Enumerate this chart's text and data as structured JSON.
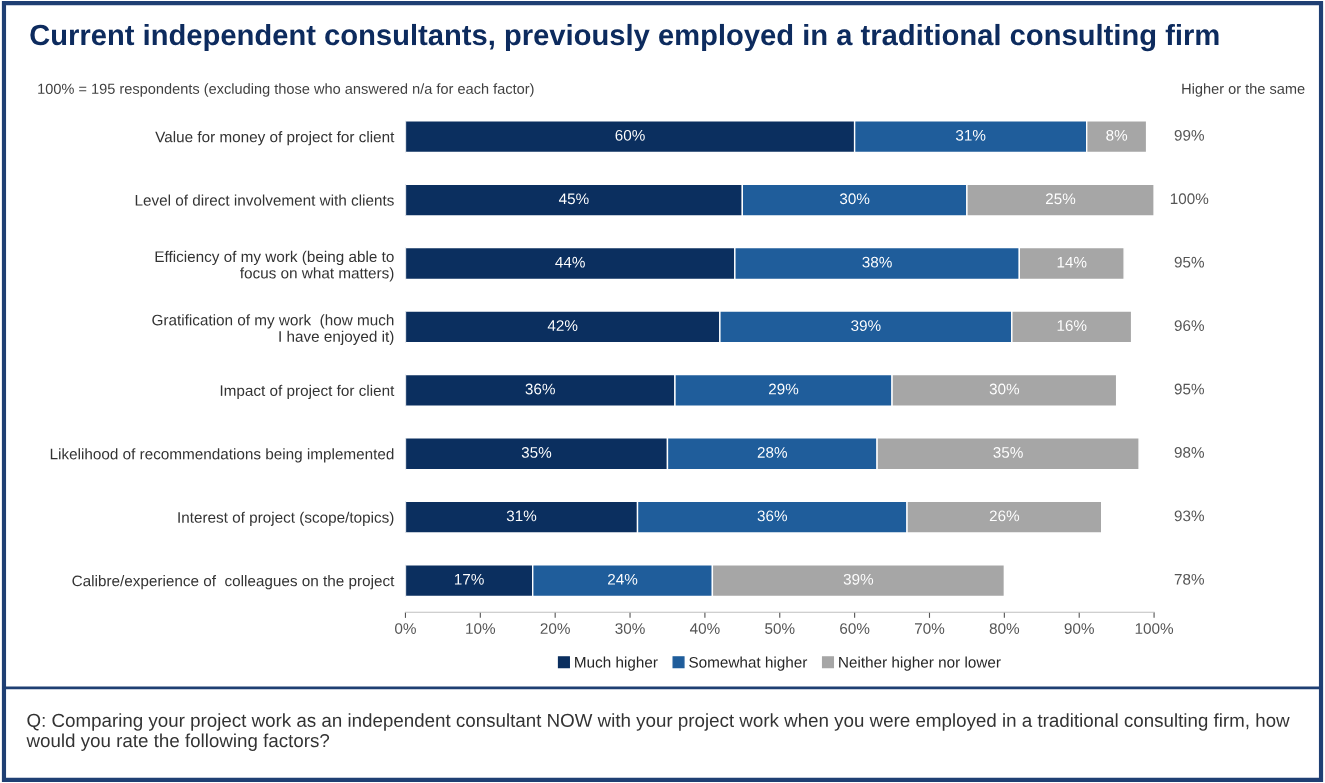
{
  "chart_data": {
    "type": "bar",
    "orientation": "horizontal",
    "stacked": true,
    "title": "Current independent consultants, previously employed in a traditional consulting firm",
    "subtitle": "100% = 195 respondents (excluding those who answered n/a for each factor)",
    "categories": [
      "Value for money of project for client",
      "Level of direct involvement with clients",
      "Efficiency of my work (being able to\nfocus on what matters)",
      "Gratification of my work  (how much\nI have enjoyed it)",
      "Impact of project for client",
      "Likelihood of recommendations being implemented",
      "Interest of project (scope/topics)",
      "Calibre/experience of  colleagues on the project"
    ],
    "series": [
      {
        "name": "Much higher",
        "color": "#0b2f5f",
        "values": [
          60,
          45,
          44,
          42,
          36,
          35,
          31,
          17
        ],
        "value_labels": [
          "60%",
          "45%",
          "44%",
          "42%",
          "36%",
          "35%",
          "31%",
          "17%"
        ]
      },
      {
        "name": "Somewhat higher",
        "color": "#1f5d9b",
        "values": [
          31,
          30,
          38,
          39,
          29,
          28,
          36,
          24
        ],
        "value_labels": [
          "31%",
          "30%",
          "38%",
          "39%",
          "29%",
          "28%",
          "36%",
          "24%"
        ]
      },
      {
        "name": "Neither higher nor lower",
        "color": "#a6a6a6",
        "values": [
          8,
          25,
          14,
          16,
          30,
          35,
          26,
          39
        ],
        "value_labels": [
          "8%",
          "25%",
          "14%",
          "16%",
          "30%",
          "35%",
          "26%",
          "39%"
        ]
      }
    ],
    "xlim": [
      0,
      100
    ],
    "xticks": [
      {
        "value": 0,
        "label": "0%"
      },
      {
        "value": 10,
        "label": "10%"
      },
      {
        "value": 20,
        "label": "20%"
      },
      {
        "value": 30,
        "label": "30%"
      },
      {
        "value": 40,
        "label": "40%"
      },
      {
        "value": 50,
        "label": "50%"
      },
      {
        "value": 60,
        "label": "60%"
      },
      {
        "value": 70,
        "label": "70%"
      },
      {
        "value": 80,
        "label": "80%"
      },
      {
        "value": 90,
        "label": "90%"
      },
      {
        "value": 100,
        "label": "100%"
      }
    ],
    "grid": false,
    "legend": "bottom",
    "annotations": [
      "Higher or the same",
      "Q: Comparing your project work as an independent consultant NOW with your project work when you were employed in a traditional consulting firm, how would you rate the following factors?",
      "99%",
      "100%",
      "95%",
      "96%",
      "95%",
      "98%",
      "93%",
      "78%"
    ]
  }
}
